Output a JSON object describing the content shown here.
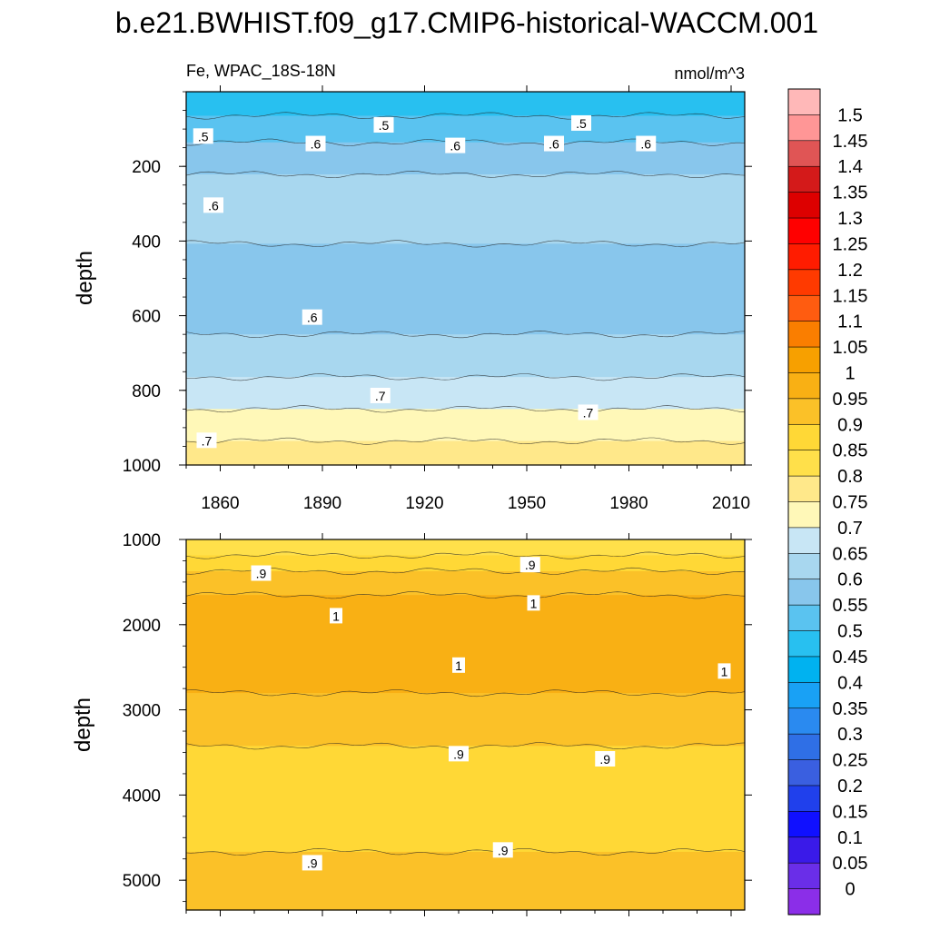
{
  "figure_title": "b.e21.BWHIST.f09_g17.CMIP6-historical-WACCM.001",
  "chart_data": [
    {
      "type": "heatmap",
      "panel": "upper",
      "left_label": "Fe, WPAC_18S-18N",
      "right_label": "nmol/m^3",
      "ylabel": "depth",
      "xlabel": "",
      "xlim": [
        1850,
        2014
      ],
      "ylim": [
        1000,
        0
      ],
      "xticks": [
        1860,
        1890,
        1920,
        1950,
        1980,
        2010
      ],
      "yticks": [
        200,
        400,
        600,
        800,
        1000
      ],
      "profile": [
        {
          "depth": 0,
          "value": 0.45
        },
        {
          "depth": 30,
          "value": 0.47
        },
        {
          "depth": 60,
          "value": 0.5
        },
        {
          "depth": 100,
          "value": 0.53
        },
        {
          "depth": 160,
          "value": 0.57
        },
        {
          "depth": 220,
          "value": 0.6
        },
        {
          "depth": 300,
          "value": 0.62
        },
        {
          "depth": 400,
          "value": 0.6
        },
        {
          "depth": 550,
          "value": 0.58
        },
        {
          "depth": 650,
          "value": 0.6
        },
        {
          "depth": 760,
          "value": 0.65
        },
        {
          "depth": 850,
          "value": 0.7
        },
        {
          "depth": 930,
          "value": 0.75
        },
        {
          "depth": 1000,
          "value": 0.78
        }
      ],
      "contour_labels": [
        {
          "text": ".5",
          "year": 1855,
          "depth": 120
        },
        {
          "text": ".5",
          "year": 1908,
          "depth": 90
        },
        {
          "text": ".5",
          "year": 1966,
          "depth": 85
        },
        {
          "text": ".6",
          "year": 1888,
          "depth": 140
        },
        {
          "text": ".6",
          "year": 1929,
          "depth": 145
        },
        {
          "text": ".6",
          "year": 1958,
          "depth": 140
        },
        {
          "text": ".6",
          "year": 1985,
          "depth": 140
        },
        {
          "text": ".6",
          "year": 1858,
          "depth": 305
        },
        {
          "text": ".6",
          "year": 1887,
          "depth": 605
        },
        {
          "text": ".7",
          "year": 1907,
          "depth": 815
        },
        {
          "text": ".7",
          "year": 1968,
          "depth": 860
        },
        {
          "text": ".7",
          "year": 1856,
          "depth": 935
        }
      ]
    },
    {
      "type": "heatmap",
      "panel": "lower",
      "ylabel": "depth",
      "xlim": [
        1850,
        2014
      ],
      "ylim": [
        5350,
        1000
      ],
      "yticks": [
        1000,
        2000,
        3000,
        4000,
        5000
      ],
      "profile": [
        {
          "depth": 1000,
          "value": 0.8
        },
        {
          "depth": 1100,
          "value": 0.83
        },
        {
          "depth": 1250,
          "value": 0.87
        },
        {
          "depth": 1450,
          "value": 0.92
        },
        {
          "depth": 1800,
          "value": 0.98
        },
        {
          "depth": 2200,
          "value": 1.0
        },
        {
          "depth": 2600,
          "value": 0.97
        },
        {
          "depth": 2900,
          "value": 0.94
        },
        {
          "depth": 3400,
          "value": 0.9
        },
        {
          "depth": 4000,
          "value": 0.87
        },
        {
          "depth": 4500,
          "value": 0.88
        },
        {
          "depth": 4800,
          "value": 0.92
        },
        {
          "depth": 5350,
          "value": 0.94
        }
      ],
      "contour_labels": [
        {
          "text": ".9",
          "year": 1872,
          "depth": 1400
        },
        {
          "text": ".9",
          "year": 1951,
          "depth": 1300
        },
        {
          "text": "1",
          "year": 1894,
          "depth": 1900
        },
        {
          "text": "1",
          "year": 1952,
          "depth": 1750
        },
        {
          "text": "1",
          "year": 1930,
          "depth": 2480
        },
        {
          "text": "1",
          "year": 2008,
          "depth": 2550
        },
        {
          "text": ".9",
          "year": 1930,
          "depth": 3520
        },
        {
          "text": ".9",
          "year": 1973,
          "depth": 3580
        },
        {
          "text": ".9",
          "year": 1887,
          "depth": 4800
        },
        {
          "text": ".9",
          "year": 1943,
          "depth": 4650
        }
      ]
    }
  ],
  "colorbar": {
    "levels": [
      "0",
      "0.05",
      "0.1",
      "0.15",
      "0.2",
      "0.25",
      "0.3",
      "0.35",
      "0.4",
      "0.45",
      "0.5",
      "0.55",
      "0.6",
      "0.65",
      "0.7",
      "0.75",
      "0.8",
      "0.85",
      "0.9",
      "0.95",
      "1",
      "1.05",
      "1.1",
      "1.15",
      "1.2",
      "1.25",
      "1.3",
      "1.35",
      "1.4",
      "1.45",
      "1.5"
    ],
    "colors": [
      "#8b2ee8",
      "#6a2ee8",
      "#3a1ae8",
      "#1010ff",
      "#2040ec",
      "#3a5fe0",
      "#2f6fe6",
      "#2a8af0",
      "#19a1f5",
      "#00b2f0",
      "#28c0f0",
      "#5ac3f0",
      "#88c6ec",
      "#a8d7ef",
      "#c8e6f5",
      "#fff8b8",
      "#ffe88a",
      "#ffe04a",
      "#ffd836",
      "#fbc128",
      "#f9b014",
      "#f7a000",
      "#fa7e00",
      "#ff5c10",
      "#ff3a00",
      "#ff1c00",
      "#ff0000",
      "#dd0000",
      "#d41a1a",
      "#e05555",
      "#ff9696",
      "#ffb8b8"
    ]
  }
}
